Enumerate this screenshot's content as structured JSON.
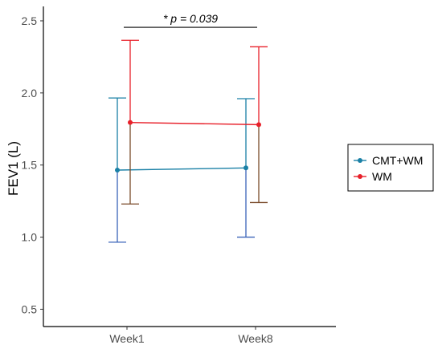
{
  "chart_data": {
    "type": "line",
    "title": "",
    "xlabel": "",
    "ylabel": "FEV1 (L)",
    "categories": [
      "Week1",
      "Week8"
    ],
    "ylim": [
      0.38,
      2.6
    ],
    "yticks": [
      "0.5",
      "1.0",
      "1.5",
      "2.0",
      "2.5"
    ],
    "grid": false,
    "legend_position": "right",
    "series": [
      {
        "name": "CMT+WM",
        "color": "#1a80a6",
        "values": [
          1.465,
          1.48
        ],
        "lower": [
          0.965,
          1.0
        ],
        "upper": [
          1.965,
          1.96
        ],
        "lower_cap_color": "#3a63b8"
      },
      {
        "name": "WM",
        "color": "#e8202a",
        "values": [
          1.795,
          1.78
        ],
        "lower": [
          1.23,
          1.24
        ],
        "upper": [
          2.365,
          2.32
        ],
        "lower_cap_color": "#7a4a2a"
      }
    ],
    "annotation": {
      "text": "* p = 0.039",
      "from_category": "Week1",
      "to_category": "Week8",
      "y": 2.455
    }
  }
}
